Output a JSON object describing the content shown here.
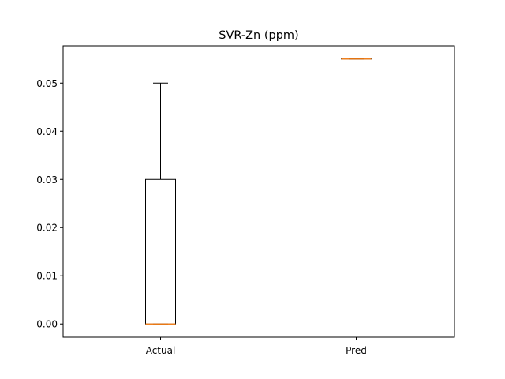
{
  "chart_data": {
    "type": "box",
    "title": "SVR-Zn (ppm)",
    "xlabel": "",
    "ylabel": "",
    "categories": [
      "Actual",
      "Pred"
    ],
    "boxes": [
      {
        "label": "Actual",
        "whisker_low": 0.0,
        "q1": 0.0,
        "median": 0.0,
        "q3": 0.03,
        "whisker_high": 0.05
      },
      {
        "label": "Pred",
        "whisker_low": 0.055,
        "q1": 0.055,
        "median": 0.055,
        "q3": 0.055,
        "whisker_high": 0.055
      }
    ],
    "ylim": [
      -0.00275,
      0.05775
    ],
    "yticks": [
      0.0,
      0.01,
      0.02,
      0.03,
      0.04,
      0.05
    ],
    "ytick_labels": [
      "0.00",
      "0.01",
      "0.02",
      "0.03",
      "0.04",
      "0.05"
    ],
    "grid": false,
    "colors": {
      "box": "#000000",
      "median": "#ff7f0e",
      "axes": "#000000"
    }
  }
}
